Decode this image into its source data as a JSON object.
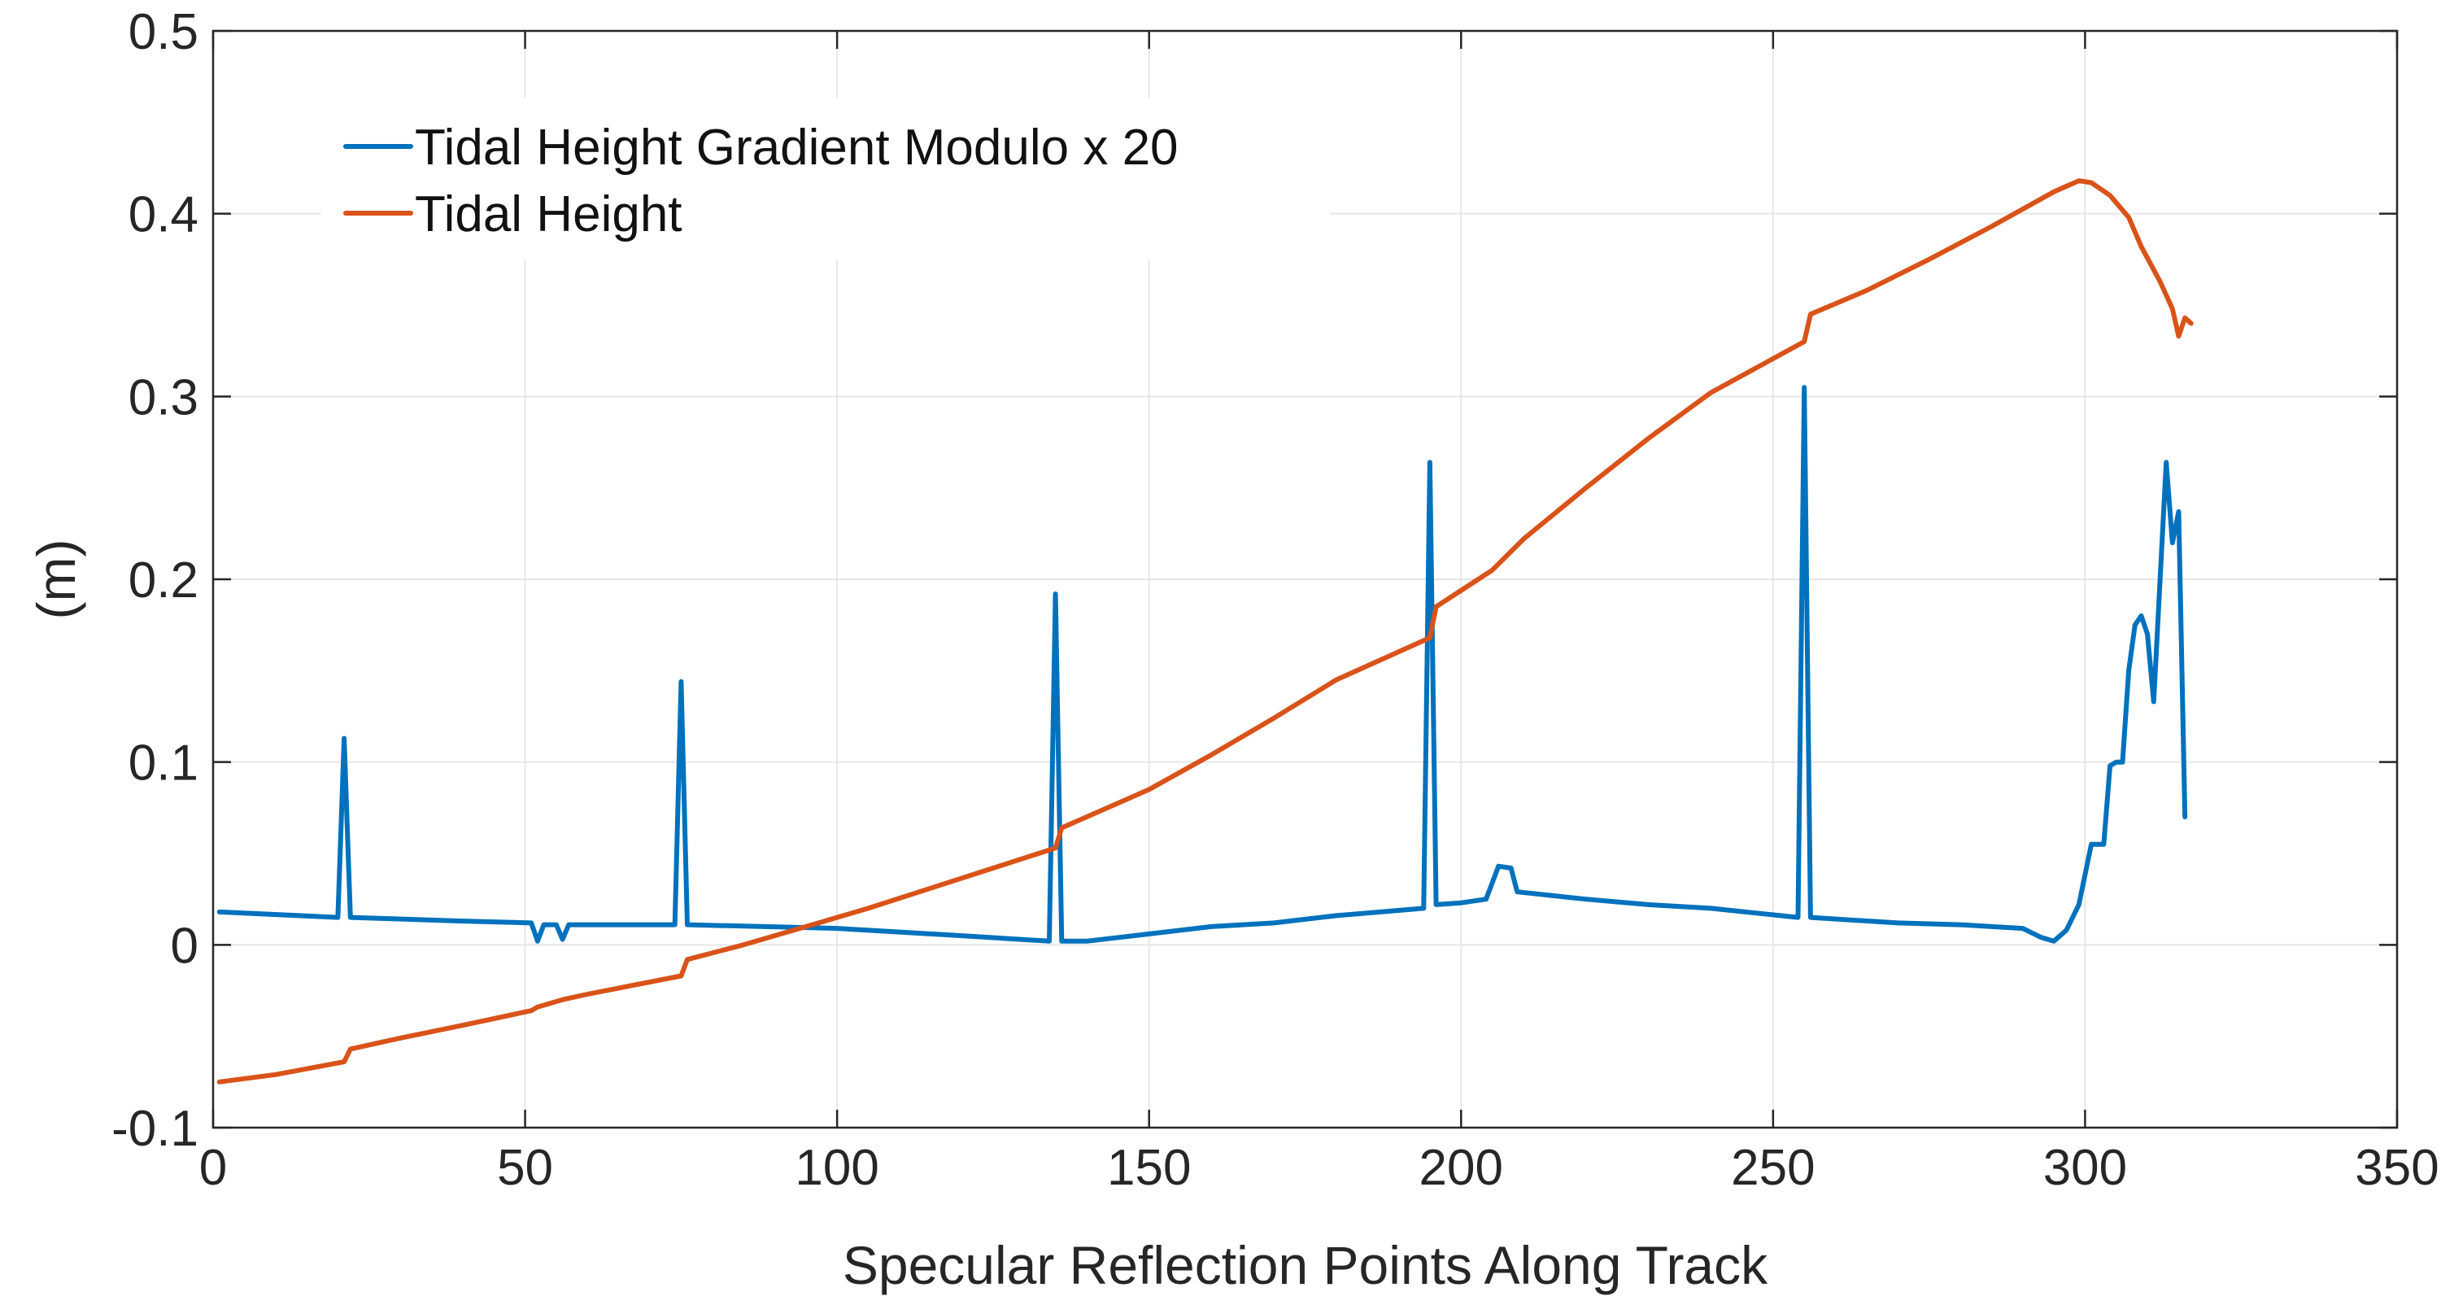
{
  "chart_data": {
    "type": "line",
    "title": "",
    "xlabel": "Specular Reflection Points Along Track",
    "ylabel": "(m)",
    "xlim": [
      0,
      350
    ],
    "ylim": [
      -0.1,
      0.5
    ],
    "grid": true,
    "legend_position": "top-left",
    "x_ticks": [
      0,
      50,
      100,
      150,
      200,
      250,
      300,
      350
    ],
    "x_tick_labels": [
      "0",
      "50",
      "100",
      "150",
      "200",
      "250",
      "300",
      "350"
    ],
    "y_ticks": [
      -0.1,
      0,
      0.1,
      0.2,
      0.3,
      0.4,
      0.5
    ],
    "y_tick_labels": [
      "-0.1",
      "0",
      "0.1",
      "0.2",
      "0.3",
      "0.4",
      "0.5"
    ],
    "series": [
      {
        "name": "Tidal Height Gradient Modulo x 20",
        "color": "#0072BD",
        "points": [
          [
            1,
            0.018
          ],
          [
            20,
            0.015
          ],
          [
            21,
            0.113
          ],
          [
            22,
            0.015
          ],
          [
            40,
            0.013
          ],
          [
            51,
            0.012
          ],
          [
            52,
            0.002
          ],
          [
            53,
            0.011
          ],
          [
            55,
            0.011
          ],
          [
            56,
            0.003
          ],
          [
            57,
            0.011
          ],
          [
            74,
            0.011
          ],
          [
            75,
            0.144
          ],
          [
            76,
            0.011
          ],
          [
            100,
            0.009
          ],
          [
            120,
            0.005
          ],
          [
            134,
            0.002
          ],
          [
            135,
            0.192
          ],
          [
            136,
            0.002
          ],
          [
            140,
            0.002
          ],
          [
            150,
            0.006
          ],
          [
            160,
            0.01
          ],
          [
            170,
            0.012
          ],
          [
            180,
            0.016
          ],
          [
            194,
            0.02
          ],
          [
            195,
            0.264
          ],
          [
            196,
            0.022
          ],
          [
            200,
            0.023
          ],
          [
            204,
            0.025
          ],
          [
            206,
            0.043
          ],
          [
            208,
            0.042
          ],
          [
            209,
            0.029
          ],
          [
            220,
            0.025
          ],
          [
            230,
            0.022
          ],
          [
            240,
            0.02
          ],
          [
            254,
            0.015
          ],
          [
            255,
            0.305
          ],
          [
            256,
            0.015
          ],
          [
            270,
            0.012
          ],
          [
            280,
            0.011
          ],
          [
            290,
            0.009
          ],
          [
            293,
            0.004
          ],
          [
            295,
            0.002
          ],
          [
            297,
            0.008
          ],
          [
            299,
            0.022
          ],
          [
            301,
            0.055
          ],
          [
            303,
            0.055
          ],
          [
            304,
            0.098
          ],
          [
            305,
            0.1
          ],
          [
            306,
            0.1
          ],
          [
            307,
            0.15
          ],
          [
            308,
            0.175
          ],
          [
            309,
            0.18
          ],
          [
            310,
            0.17
          ],
          [
            311,
            0.133
          ],
          [
            313,
            0.264
          ],
          [
            314,
            0.22
          ],
          [
            315,
            0.237
          ],
          [
            316,
            0.07
          ]
        ]
      },
      {
        "name": "Tidal Height",
        "color": "#D95319",
        "points": [
          [
            1,
            -0.075
          ],
          [
            10,
            -0.071
          ],
          [
            21,
            -0.064
          ],
          [
            22,
            -0.057
          ],
          [
            30,
            -0.051
          ],
          [
            40,
            -0.044
          ],
          [
            51,
            -0.036
          ],
          [
            52,
            -0.034
          ],
          [
            56,
            -0.03
          ],
          [
            60,
            -0.027
          ],
          [
            75,
            -0.017
          ],
          [
            76,
            -0.008
          ],
          [
            85,
            0.0
          ],
          [
            95,
            0.01
          ],
          [
            105,
            0.02
          ],
          [
            115,
            0.031
          ],
          [
            125,
            0.042
          ],
          [
            135,
            0.053
          ],
          [
            136,
            0.064
          ],
          [
            150,
            0.085
          ],
          [
            160,
            0.104
          ],
          [
            170,
            0.124
          ],
          [
            180,
            0.145
          ],
          [
            195,
            0.168
          ],
          [
            196,
            0.185
          ],
          [
            205,
            0.205
          ],
          [
            210,
            0.222
          ],
          [
            220,
            0.25
          ],
          [
            230,
            0.277
          ],
          [
            240,
            0.302
          ],
          [
            255,
            0.33
          ],
          [
            256,
            0.345
          ],
          [
            265,
            0.358
          ],
          [
            275,
            0.375
          ],
          [
            285,
            0.393
          ],
          [
            295,
            0.412
          ],
          [
            299,
            0.418
          ],
          [
            301,
            0.417
          ],
          [
            304,
            0.41
          ],
          [
            307,
            0.398
          ],
          [
            309,
            0.382
          ],
          [
            312,
            0.363
          ],
          [
            314,
            0.348
          ],
          [
            315,
            0.333
          ],
          [
            316,
            0.343
          ],
          [
            317,
            0.34
          ]
        ]
      }
    ]
  }
}
